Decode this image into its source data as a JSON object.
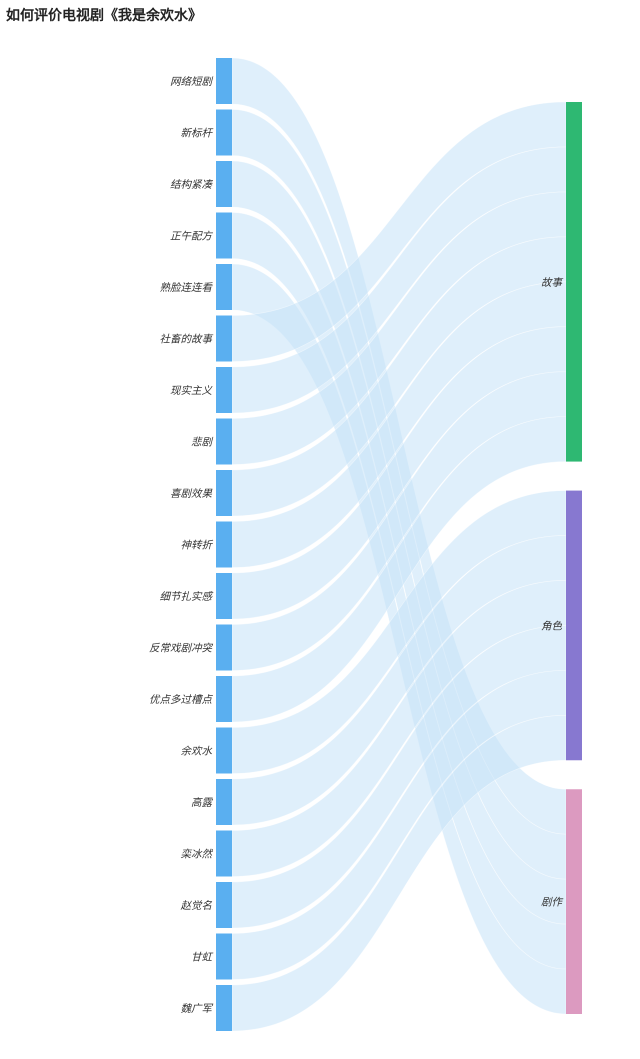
{
  "chart_data": {
    "type": "sankey",
    "title": "如何评价电视剧《我是余欢水》",
    "source_nodes": [
      "网络短剧",
      "新标杆",
      "结构紧凑",
      "正午配方",
      "熟脸连连看",
      "社畜的故事",
      "现实主义",
      "悲剧",
      "喜剧效果",
      "神转折",
      "细节扎实感",
      "反常戏剧冲突",
      "优点多过槽点",
      "余欢水",
      "高露",
      "栾冰然",
      "赵觉名",
      "甘虹",
      "魏广军"
    ],
    "target_nodes": [
      "故事",
      "角色",
      "剧作"
    ],
    "links": [
      {
        "source": "网络短剧",
        "target": "剧作",
        "value": 1
      },
      {
        "source": "新标杆",
        "target": "剧作",
        "value": 1
      },
      {
        "source": "结构紧凑",
        "target": "剧作",
        "value": 1
      },
      {
        "source": "正午配方",
        "target": "剧作",
        "value": 1
      },
      {
        "source": "熟脸连连看",
        "target": "剧作",
        "value": 1
      },
      {
        "source": "社畜的故事",
        "target": "故事",
        "value": 1
      },
      {
        "source": "现实主义",
        "target": "故事",
        "value": 1
      },
      {
        "source": "悲剧",
        "target": "故事",
        "value": 1
      },
      {
        "source": "喜剧效果",
        "target": "故事",
        "value": 1
      },
      {
        "source": "神转折",
        "target": "故事",
        "value": 1
      },
      {
        "source": "细节扎实感",
        "target": "故事",
        "value": 1
      },
      {
        "source": "反常戏剧冲突",
        "target": "故事",
        "value": 1
      },
      {
        "source": "优点多过槽点",
        "target": "故事",
        "value": 1
      },
      {
        "source": "余欢水",
        "target": "角色",
        "value": 1
      },
      {
        "source": "高露",
        "target": "角色",
        "value": 1
      },
      {
        "source": "栾冰然",
        "target": "角色",
        "value": 1
      },
      {
        "source": "赵觉名",
        "target": "角色",
        "value": 1
      },
      {
        "source": "甘虹",
        "target": "角色",
        "value": 1
      },
      {
        "source": "魏广军",
        "target": "角色",
        "value": 1
      }
    ],
    "colors": {
      "source_node": "#5aaff0",
      "link": "#c4e1f8",
      "故事": "#2eb872",
      "角色": "#8778d0",
      "剧作": "#dc9ac0"
    }
  }
}
